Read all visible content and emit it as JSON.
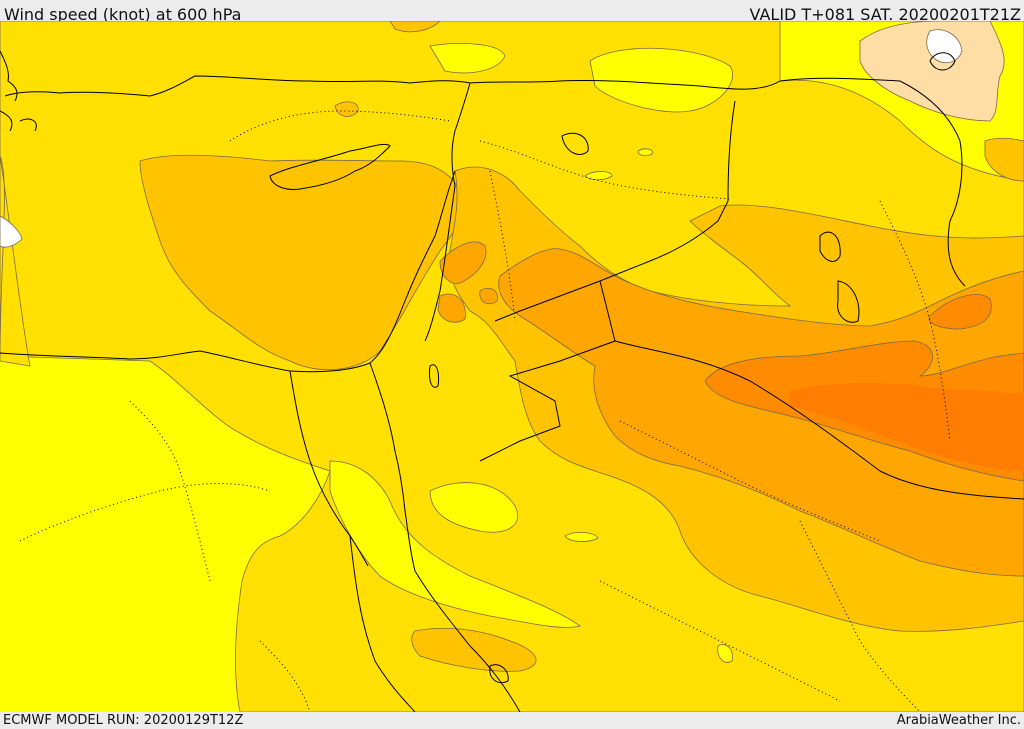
{
  "header": {
    "title": "Wind speed (knot) at 600 hPa",
    "valid_time": "VALID T+081 SAT. 20200201T21Z"
  },
  "footer": {
    "model_run": "ECMWF MODEL RUN: 20200129T12Z",
    "provider": "ArabiaWeather Inc."
  },
  "palette": {
    "band_1": "#ffff00",
    "band_2": "#ffe000",
    "band_3": "#ffc300",
    "band_4": "#ffa700",
    "band_5": "#ff8b00",
    "band_6": "#ff7d00",
    "light_band": "#ffdea6",
    "calm": "#ffffff",
    "contour": "#7a6a4a",
    "coast": "#000000"
  }
}
